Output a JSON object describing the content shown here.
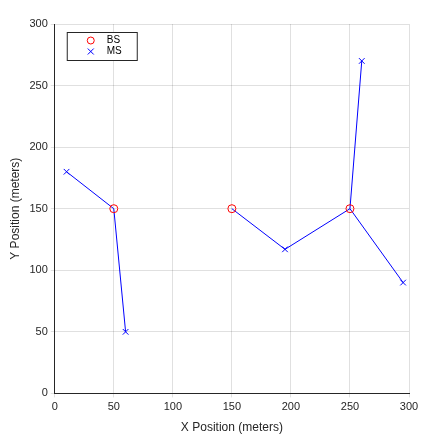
{
  "chart_data": {
    "type": "scatter",
    "x_label": "X Position (meters)",
    "y_label": "Y Position (meters)",
    "xlim": [
      0,
      300
    ],
    "xticks": [
      0,
      50,
      100,
      150,
      200,
      250,
      300
    ],
    "ylim": [
      0,
      300
    ],
    "yticks": [
      0,
      50,
      100,
      150,
      200,
      250,
      300
    ],
    "grid": true,
    "legend": "upper left",
    "series": [
      {
        "name": "BS",
        "color": "#ff0000",
        "marker": "circle",
        "x": [
          50,
          150,
          250
        ],
        "y": [
          150,
          150,
          150
        ]
      },
      {
        "name": "MS",
        "color": "#0000ff",
        "marker": "x",
        "x": [
          10,
          60,
          195,
          260,
          295
        ],
        "y": [
          180,
          50,
          117,
          270,
          90
        ]
      }
    ],
    "links": {
      "color": "#0000ff",
      "segments": [
        [
          [
            50,
            150
          ],
          [
            10,
            180
          ]
        ],
        [
          [
            50,
            150
          ],
          [
            60,
            50
          ]
        ],
        [
          [
            150,
            150
          ],
          [
            195,
            117
          ]
        ],
        [
          [
            250,
            150
          ],
          [
            195,
            117
          ]
        ],
        [
          [
            250,
            150
          ],
          [
            260,
            270
          ]
        ],
        [
          [
            250,
            150
          ],
          [
            295,
            90
          ]
        ]
      ]
    }
  }
}
